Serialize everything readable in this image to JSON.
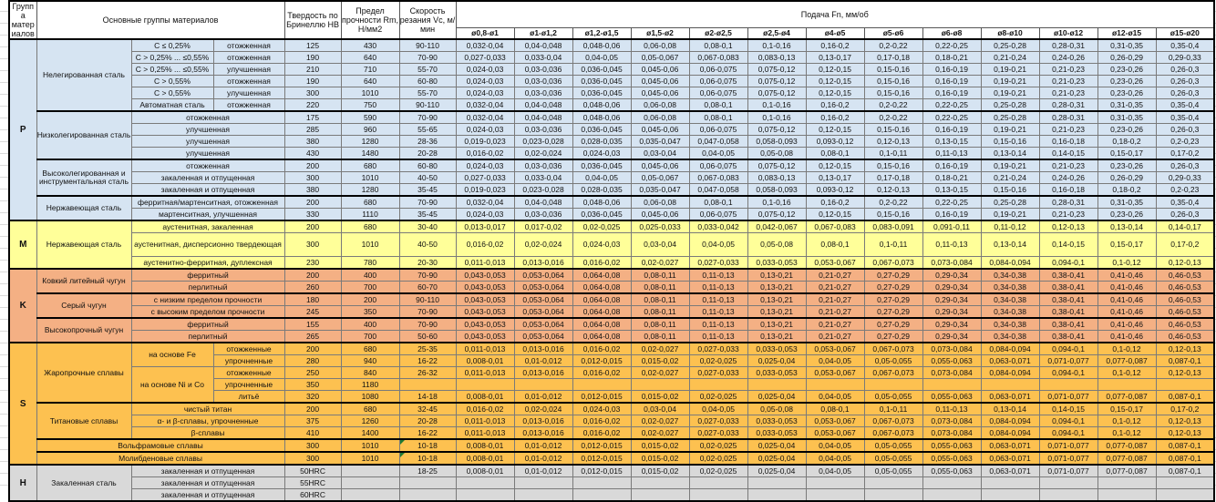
{
  "header": {
    "group": "Группа матер иалов",
    "materials": "Основные группы материалов",
    "hardness": "Твердость по Бринеллю HB",
    "strength": "Предел прочности Rm, Н/мм2",
    "speed": "Скорость резания Vc, м/мин",
    "feed": "Подача Fn, мм/об",
    "diameters": [
      "ø0,8-ø1",
      "ø1-ø1,2",
      "ø1,2-ø1,5",
      "ø1,5-ø2",
      "ø2-ø2,5",
      "ø2,5-ø4",
      "ø4-ø5",
      "ø5-ø6",
      "ø6-ø8",
      "ø8-ø10",
      "ø10-ø12",
      "ø12-ø15",
      "ø15-ø20"
    ],
    "column_count_feed": 13
  },
  "colors": {
    "P": "#D6E4F2",
    "M": "#FFFF99",
    "K": "#F4B084",
    "S": "#FDC150",
    "H": "#D9D9D9",
    "grid_line": "#7A7A7A",
    "section_border": "#000000",
    "comment_marker": "#1F7A33"
  },
  "feed_sets": {
    "A": [
      "0,032-0,04",
      "0,04-0,048",
      "0,048-0,06",
      "0,06-0,08",
      "0,08-0,1",
      "0,1-0,16",
      "0,16-0,2",
      "0,2-0,22",
      "0,22-0,25",
      "0,25-0,28",
      "0,28-0,31",
      "0,31-0,35",
      "0,35-0,4"
    ],
    "B": [
      "0,027-0,033",
      "0,033-0,04",
      "0,04-0,05",
      "0,05-0,067",
      "0,067-0,083",
      "0,083-0,13",
      "0,13-0,17",
      "0,17-0,18",
      "0,18-0,21",
      "0,21-0,24",
      "0,24-0,26",
      "0,26-0,29",
      "0,29-0,33"
    ],
    "C": [
      "0,024-0,03",
      "0,03-0,036",
      "0,036-0,045",
      "0,045-0,06",
      "0,06-0,075",
      "0,075-0,12",
      "0,12-0,15",
      "0,15-0,16",
      "0,16-0,19",
      "0,19-0,21",
      "0,21-0,23",
      "0,23-0,26",
      "0,26-0,3"
    ],
    "D": [
      "0,019-0,023",
      "0,023-0,028",
      "0,028-0,035",
      "0,035-0,047",
      "0,047-0,058",
      "0,058-0,093",
      "0,093-0,12",
      "0,12-0,13",
      "0,13-0,15",
      "0,15-0,16",
      "0,16-0,18",
      "0,18-0,2",
      "0,2-0,23"
    ],
    "E": [
      "0,016-0,02",
      "0,02-0,024",
      "0,024-0,03",
      "0,03-0,04",
      "0,04-0,05",
      "0,05-0,08",
      "0,08-0,1",
      "0,1-0,11",
      "0,11-0,13",
      "0,13-0,14",
      "0,14-0,15",
      "0,15-0,17",
      "0,17-0,2"
    ],
    "M1": [
      "0,013-0,017",
      "0,017-0,02",
      "0,02-0,025",
      "0,025-0,033",
      "0,033-0,042",
      "0,042-0,067",
      "0,067-0,083",
      "0,083-0,091",
      "0,091-0,11",
      "0,11-0,12",
      "0,12-0,13",
      "0,13-0,14",
      "0,14-0,17"
    ],
    "M3": [
      "0,011-0,013",
      "0,013-0,016",
      "0,016-0,02",
      "0,02-0,027",
      "0,027-0,033",
      "0,033-0,053",
      "0,053-0,067",
      "0,067-0,073",
      "0,073-0,084",
      "0,084-0,094",
      "0,094-0,1",
      "0,1-0,12",
      "0,12-0,13"
    ],
    "K": [
      "0,043-0,053",
      "0,053-0,064",
      "0,064-0,08",
      "0,08-0,11",
      "0,11-0,13",
      "0,13-0,21",
      "0,21-0,27",
      "0,27-0,29",
      "0,29-0,34",
      "0,34-0,38",
      "0,38-0,41",
      "0,41-0,46",
      "0,46-0,53"
    ],
    "S2": [
      "0,008-0,01",
      "0,01-0,012",
      "0,012-0,015",
      "0,015-0,02",
      "0,02-0,025",
      "0,025-0,04",
      "0,04-0,05",
      "0,05-0,055",
      "0,055-0,063",
      "0,063-0,071",
      "0,071-0,077",
      "0,077-0,087",
      "0,087-0,1"
    ],
    "EMPTY": [
      "",
      "",
      "",
      "",
      "",
      "",
      "",
      "",
      "",
      "",
      "",
      "",
      ""
    ]
  },
  "sections": [
    {
      "letter": "P",
      "groups": [
        {
          "name": "Нелегированная сталь",
          "rows": [
            {
              "sub": "С ≤ 0,25%",
              "treat": "отожженная",
              "hb": "125",
              "rm": "430",
              "vc": "90-110",
              "feeds": "A"
            },
            {
              "sub": "С > 0,25% ... ≤0,55%",
              "treat": "отожженная",
              "hb": "190",
              "rm": "640",
              "vc": "70-90",
              "feeds": "B"
            },
            {
              "sub": "С > 0,25% ... ≤0,55%",
              "treat": "улучшенная",
              "hb": "210",
              "rm": "710",
              "vc": "55-70",
              "feeds": "C"
            },
            {
              "sub": "С > 0,55%",
              "treat": "отожженная",
              "hb": "190",
              "rm": "640",
              "vc": "60-80",
              "feeds": "C"
            },
            {
              "sub": "С > 0,55%",
              "treat": "улучшенная",
              "hb": "300",
              "rm": "1010",
              "vc": "55-70",
              "feeds": "C"
            },
            {
              "sub": "Автоматная сталь",
              "treat": "отожженная",
              "hb": "220",
              "rm": "750",
              "vc": "90-110",
              "feeds": "A"
            }
          ]
        },
        {
          "name": "Низколегированная сталь",
          "rows": [
            {
              "merged": true,
              "treat": "отожженная",
              "hb": "175",
              "rm": "590",
              "vc": "70-90",
              "feeds": "A"
            },
            {
              "merged": true,
              "treat": "улучшенная",
              "hb": "285",
              "rm": "960",
              "vc": "55-65",
              "feeds": "C"
            },
            {
              "merged": true,
              "treat": "улучшенная",
              "hb": "380",
              "rm": "1280",
              "vc": "28-36",
              "feeds": "D"
            },
            {
              "merged": true,
              "treat": "улучшенная",
              "hb": "430",
              "rm": "1480",
              "vc": "20-28",
              "feeds": "E"
            }
          ]
        },
        {
          "name": "Высоколегированная и инструментальная сталь",
          "rows": [
            {
              "merged": true,
              "treat": "отожженная",
              "hb": "200",
              "rm": "680",
              "vc": "60-80",
              "feeds": "C"
            },
            {
              "merged": true,
              "treat": "закаленная и отпущенная",
              "hb": "300",
              "rm": "1010",
              "vc": "40-50",
              "feeds": "B"
            },
            {
              "merged": true,
              "treat": "закаленная и отпущенная",
              "hb": "380",
              "rm": "1280",
              "vc": "35-45",
              "feeds": "D"
            }
          ]
        },
        {
          "name": "Нержавеющая сталь",
          "rows": [
            {
              "merged": true,
              "treat": "ферритная/мартенситная, отожженная",
              "hb": "200",
              "rm": "680",
              "vc": "70-90",
              "feeds": "A"
            },
            {
              "merged": true,
              "treat": "мартенситная, улучшенная",
              "hb": "330",
              "rm": "1110",
              "vc": "35-45",
              "feeds": "C"
            }
          ]
        }
      ]
    },
    {
      "letter": "M",
      "groups": [
        {
          "name": "Нержавеющая сталь",
          "rows": [
            {
              "merged": true,
              "treat": "аустенитная, закаленная",
              "hb": "200",
              "rm": "680",
              "vc": "30-40",
              "feeds": "M1"
            },
            {
              "merged": true,
              "tall": true,
              "treat": "аустенитная, дисперсионно твердеющая",
              "hb": "300",
              "rm": "1010",
              "vc": "40-50",
              "feeds": "E"
            },
            {
              "merged": true,
              "treat": "аустенитно-ферритная, дуплексная",
              "hb": "230",
              "rm": "780",
              "vc": "20-30",
              "feeds": "M3"
            }
          ]
        }
      ]
    },
    {
      "letter": "K",
      "groups": [
        {
          "name": "Ковкий литейный чугун",
          "rows": [
            {
              "merged": true,
              "treat": "ферритный",
              "hb": "200",
              "rm": "400",
              "vc": "70-90",
              "feeds": "K"
            },
            {
              "merged": true,
              "treat": "перлитный",
              "hb": "260",
              "rm": "700",
              "vc": "60-70",
              "feeds": "K"
            }
          ]
        },
        {
          "name": "Серый чугун",
          "rows": [
            {
              "merged": true,
              "treat": "с низким пределом прочности",
              "hb": "180",
              "rm": "200",
              "vc": "90-110",
              "feeds": "K"
            },
            {
              "merged": true,
              "treat": "с высоким пределом прочности",
              "hb": "245",
              "rm": "350",
              "vc": "70-90",
              "feeds": "K"
            }
          ]
        },
        {
          "name": "Высокопрочный чугун",
          "rows": [
            {
              "merged": true,
              "treat": "ферритный",
              "hb": "155",
              "rm": "400",
              "vc": "70-90",
              "feeds": "K"
            },
            {
              "merged": true,
              "treat": "перлитный",
              "hb": "265",
              "rm": "700",
              "vc": "50-60",
              "feeds": "K"
            }
          ]
        }
      ]
    },
    {
      "letter": "S",
      "groups": [
        {
          "name": "Жаропрочные сплавы",
          "rows": [
            {
              "sub": "на основе Fe",
              "sub_span": 2,
              "treat": "отожженные",
              "hb": "200",
              "rm": "680",
              "vc": "25-35",
              "feeds": "M3"
            },
            {
              "treat": "упрочненные",
              "hb": "280",
              "rm": "940",
              "vc": "16-22",
              "feeds": "S2"
            },
            {
              "sub": "на основе Ni и Co",
              "sub_span": 3,
              "treat": "отожженные",
              "hb": "250",
              "rm": "840",
              "vc": "26-32",
              "feeds": "M3"
            },
            {
              "treat": "упрочненные",
              "hb": "350",
              "rm": "1180",
              "vc": "",
              "feeds": "EMPTY"
            },
            {
              "treat": "литьё",
              "hb": "320",
              "rm": "1080",
              "vc": "14-18",
              "feeds": "S2"
            }
          ]
        },
        {
          "name": "Титановые сплавы",
          "rows": [
            {
              "merged": true,
              "treat": "чистый титан",
              "hb": "200",
              "rm": "680",
              "vc": "32-45",
              "feeds": "E"
            },
            {
              "merged": true,
              "treat": "α- и β-сплавы, упрочненные",
              "hb": "375",
              "rm": "1260",
              "vc": "20-28",
              "feeds": "M3"
            },
            {
              "merged": true,
              "treat": "β-сплавы",
              "hb": "410",
              "rm": "1400",
              "vc": "16-22",
              "feeds": "M3"
            }
          ]
        },
        {
          "name": "Вольфрамовые сплавы",
          "colspan3": true,
          "rows": [
            {
              "hb": "300",
              "rm": "1010",
              "vc": "10-18",
              "vc_note": true,
              "feeds": "S2"
            }
          ]
        },
        {
          "name": "Молибденовые сплавы",
          "colspan3": true,
          "rows": [
            {
              "hb": "300",
              "rm": "1010",
              "vc": "10-18",
              "vc_note": true,
              "feeds": "S2"
            }
          ]
        }
      ]
    },
    {
      "letter": "H",
      "groups": [
        {
          "name": "Закаленная сталь",
          "rows": [
            {
              "merged": true,
              "treat": "закаленная и отпущенная",
              "hb": "50HRC",
              "rm": "",
              "vc": "18-25",
              "feeds": "S2"
            },
            {
              "merged": true,
              "treat": "закаленная и отпущенная",
              "hb": "55HRC",
              "rm": "",
              "vc": "",
              "feeds": "EMPTY"
            },
            {
              "merged": true,
              "treat": "закаленная и отпущенная",
              "hb": "60HRC",
              "rm": "",
              "vc": "",
              "feeds": "EMPTY"
            }
          ]
        }
      ]
    }
  ]
}
